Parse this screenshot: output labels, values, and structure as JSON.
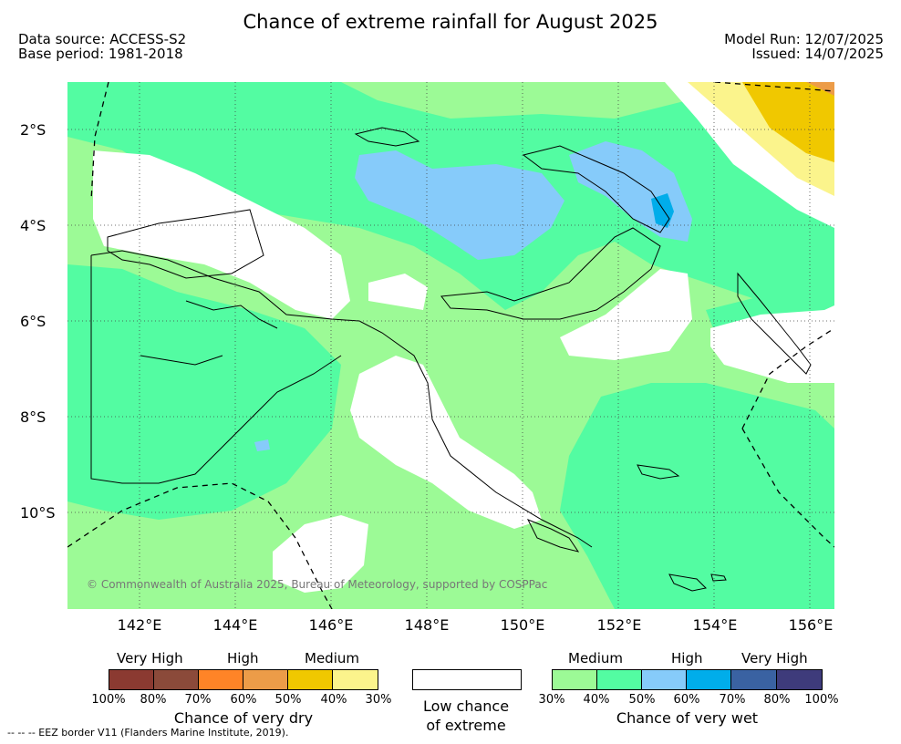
{
  "title": "Chance of extreme rainfall for August 2025",
  "meta": {
    "data_source": "Data source: ACCESS-S2",
    "base_period": "Base period: 1981-2018",
    "model_run": "Model Run: 12/07/2025",
    "issued": "Issued: 14/07/2025"
  },
  "axes": {
    "lat_labels": [
      "2°S",
      "4°S",
      "6°S",
      "8°S",
      "10°S"
    ],
    "lon_labels": [
      "142°E",
      "144°E",
      "146°E",
      "148°E",
      "150°E",
      "152°E",
      "154°E",
      "156°E"
    ]
  },
  "copyright": "© Commonwealth of Australia 2025, Bureau of Meteorology, supported by COSPPac",
  "legend": {
    "dry": {
      "headers": [
        "Very High",
        "High",
        "Medium"
      ],
      "colors": [
        "#8b3a31",
        "#8b4a3a",
        "#ff8427",
        "#ec9c48",
        "#f0c800",
        "#fbf48c"
      ],
      "ticks": [
        "100%",
        "80%",
        "70%",
        "60%",
        "50%",
        "40%",
        "30%"
      ],
      "caption": "Chance of very dry"
    },
    "low": {
      "caption_line1": "Low chance",
      "caption_line2": "of extreme"
    },
    "wet": {
      "headers": [
        "Medium",
        "High",
        "Very High"
      ],
      "colors": [
        "#9cfa96",
        "#53fca2",
        "#86cbfa",
        "#00adea",
        "#3a62a2",
        "#3e3b7b"
      ],
      "ticks": [
        "30%",
        "40%",
        "50%",
        "60%",
        "70%",
        "80%",
        "100%"
      ],
      "caption": "Chance of very wet"
    }
  },
  "eez_note": "--  --  -- EEZ border V11 (Flanders Marine Institute, 2019)."
}
